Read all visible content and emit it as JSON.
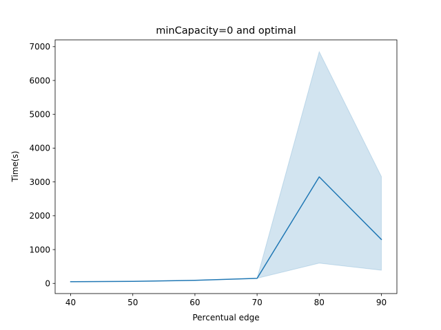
{
  "chart_data": {
    "type": "line",
    "title": "minCapacity=0 and optimal",
    "xlabel": "Percentual edge",
    "ylabel": "Time(s)",
    "xlim": [
      37.5,
      92.5
    ],
    "ylim": [
      -300,
      7200
    ],
    "xticks": [
      40,
      50,
      60,
      70,
      80,
      90
    ],
    "yticks": [
      0,
      1000,
      2000,
      3000,
      4000,
      5000,
      6000,
      7000
    ],
    "grid": false,
    "legend": "none",
    "series": [
      {
        "x": [
          40,
          50,
          60,
          70,
          80,
          90
        ],
        "y": [
          50,
          60,
          90,
          150,
          3150,
          1300
        ],
        "ci_lower": [
          50,
          60,
          90,
          150,
          600,
          390
        ],
        "ci_upper": [
          50,
          60,
          90,
          150,
          6850,
          3160
        ],
        "color": "#1f77b4",
        "band_color": "#1f77b4",
        "band_opacity": 0.2
      }
    ]
  }
}
